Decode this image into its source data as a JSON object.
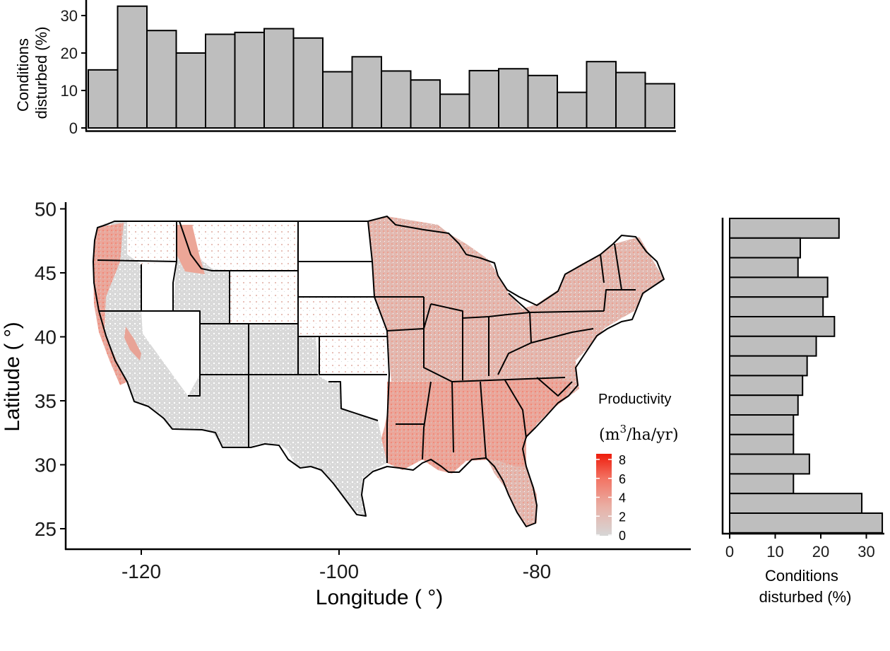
{
  "chart_data": [
    {
      "id": "top_histogram",
      "type": "bar",
      "orientation": "vertical",
      "axis": "longitude",
      "x_bins": [
        -125,
        -123,
        -121,
        -119,
        -117,
        -115,
        -113,
        -111,
        -109,
        -107,
        -105,
        -103,
        -101,
        -99,
        -97,
        -95,
        -93,
        -91,
        -89,
        -87
      ],
      "values": [
        15.5,
        32.5,
        26,
        20,
        25,
        25.5,
        26.5,
        24,
        15,
        19,
        15.2,
        12.8,
        9,
        15.3,
        15.8,
        14,
        9.5,
        17.7,
        14.8,
        11.8
      ],
      "ylabel": [
        "Conditions",
        "disturbed (%)"
      ],
      "y_ticks": [
        "0",
        "10",
        "20",
        "30"
      ],
      "ylim": [
        0,
        33
      ]
    },
    {
      "id": "right_histogram",
      "type": "bar",
      "orientation": "horizontal",
      "axis": "latitude",
      "values_top_to_bottom": [
        24,
        15.5,
        15,
        21.5,
        20.5,
        23,
        19,
        17,
        16,
        15,
        14,
        14,
        17.5,
        14,
        29,
        33.5
      ],
      "xlabel": [
        "Conditions",
        "disturbed (%)"
      ],
      "x_ticks": [
        "0",
        "10",
        "20",
        "30"
      ],
      "xlim": [
        0,
        34
      ]
    },
    {
      "id": "map",
      "type": "heatmap",
      "x_label": "Longitude ( °)",
      "y_label": "Latitude ( °)",
      "x_ticks": [
        "-120",
        "-100",
        "-80"
      ],
      "y_ticks": [
        "25",
        "30",
        "35",
        "40",
        "45",
        "50"
      ],
      "xlim": [
        -127,
        -63
      ],
      "ylim": [
        23.5,
        50.5
      ],
      "grid": false,
      "legend": {
        "title": "Productivity",
        "unit_prefix": "(m",
        "unit_sup": "3",
        "unit_suffix": "/ha/yr)",
        "ticks": [
          "8",
          "6",
          "4",
          "2",
          "0"
        ],
        "placement": "bottom-right",
        "color_low": "#d6d6d6",
        "color_high": "#ee1c0c"
      }
    }
  ]
}
